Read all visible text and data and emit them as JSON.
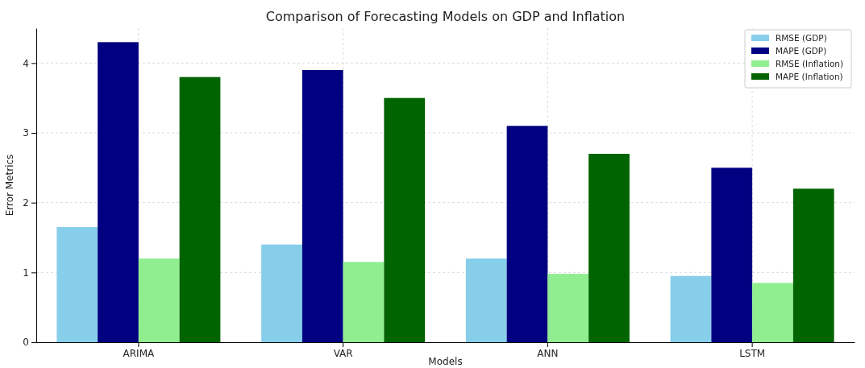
{
  "chart_data": {
    "type": "bar",
    "title": "Comparison of Forecasting Models on GDP and Inflation",
    "xlabel": "Models",
    "ylabel": "Error Metrics",
    "categories": [
      "ARIMA",
      "VAR",
      "ANN",
      "LSTM"
    ],
    "series": [
      {
        "name": "RMSE (GDP)",
        "color": "#87ceeb",
        "values": [
          1.65,
          1.4,
          1.2,
          0.95
        ]
      },
      {
        "name": "MAPE (GDP)",
        "color": "#000080",
        "values": [
          4.3,
          3.9,
          3.1,
          2.5
        ]
      },
      {
        "name": "RMSE (Inflation)",
        "color": "#90ee90",
        "values": [
          1.2,
          1.15,
          0.98,
          0.85
        ]
      },
      {
        "name": "MAPE (Inflation)",
        "color": "#006400",
        "values": [
          3.8,
          3.5,
          2.7,
          2.2
        ]
      }
    ],
    "ylim": [
      0,
      4.5
    ],
    "yticks": [
      0,
      1,
      2,
      3,
      4
    ],
    "grid": true,
    "legend": "top right"
  }
}
